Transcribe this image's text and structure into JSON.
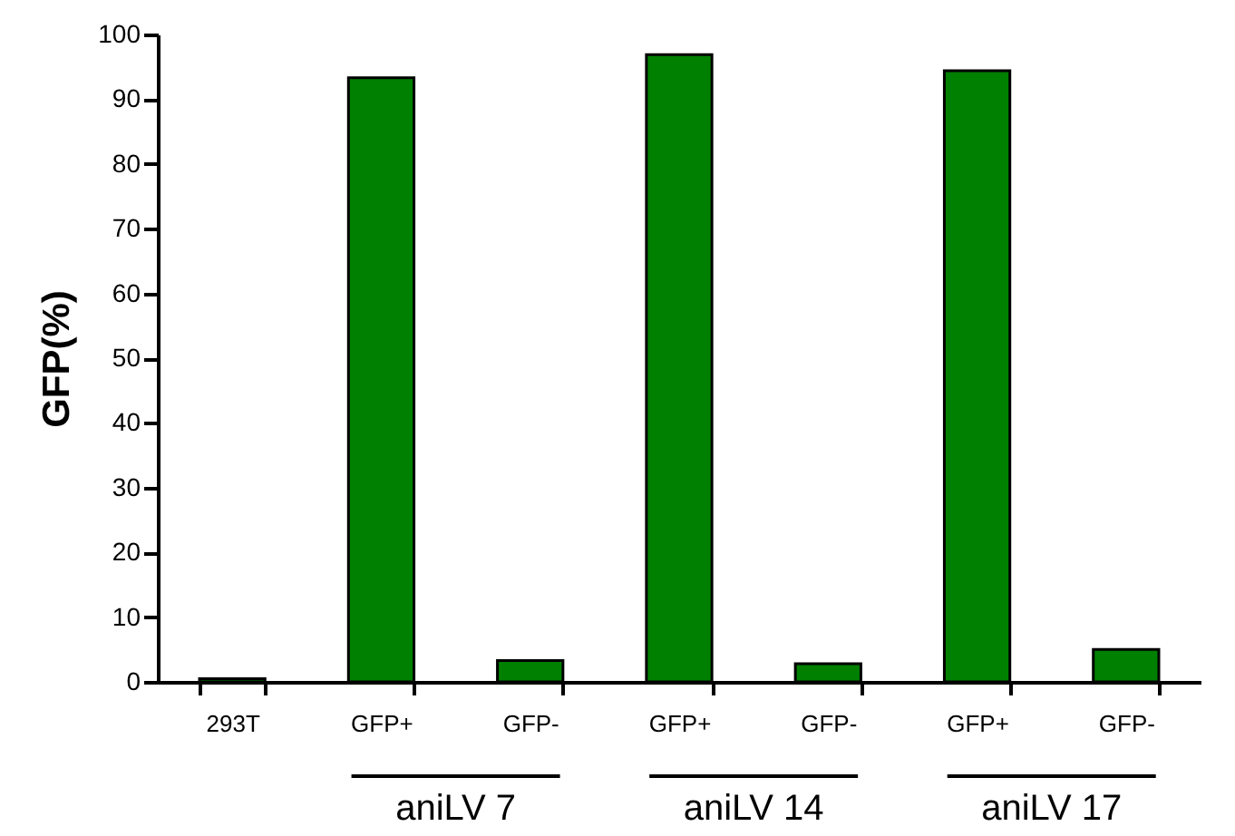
{
  "chart_data": {
    "type": "bar",
    "ylabel": "GFP(%)",
    "categories": [
      "293T",
      "GFP+",
      "GFP-",
      "GFP+",
      "GFP-",
      "GFP+",
      "GFP-"
    ],
    "values": [
      0.5,
      93.3,
      3.3,
      96.9,
      2.8,
      94.4,
      5.0
    ],
    "color": "#008000",
    "ylim": [
      0,
      100
    ],
    "yticks": [
      0,
      10,
      20,
      30,
      40,
      50,
      60,
      70,
      80,
      90,
      100
    ],
    "grid": false,
    "annotations": [
      "aniLV 7",
      "aniLV 14",
      "aniLV 17"
    ]
  }
}
